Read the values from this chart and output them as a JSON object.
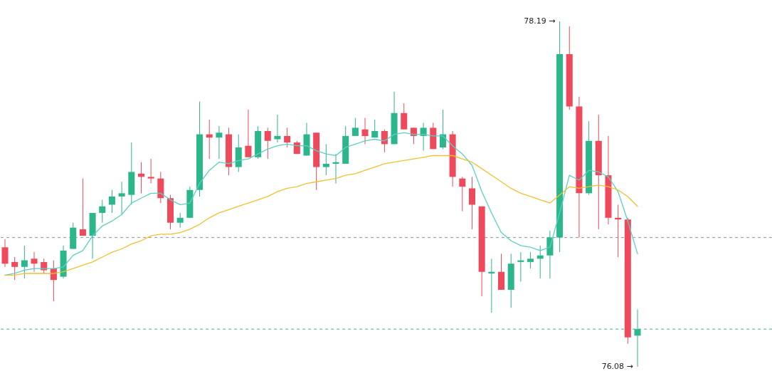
{
  "chart_data": {
    "type": "candlestick",
    "categories": [
      null,
      null,
      null,
      null,
      null,
      null,
      null,
      null,
      null,
      null,
      null,
      null,
      null,
      null,
      null,
      null,
      null,
      null,
      null,
      null,
      null,
      null,
      null,
      null,
      null,
      null,
      null,
      null,
      null,
      null,
      null,
      null,
      null,
      null,
      null,
      null,
      null,
      null,
      null,
      null,
      null,
      null,
      null,
      null,
      null,
      null,
      null,
      null,
      null,
      null,
      null,
      null,
      null,
      null,
      null,
      null,
      null,
      null,
      null,
      null,
      null,
      null,
      null,
      null,
      null,
      null
    ],
    "ohlc": [
      [
        76.81,
        76.86,
        76.69,
        76.71
      ],
      [
        76.72,
        76.75,
        76.61,
        76.69
      ],
      [
        76.69,
        76.82,
        76.62,
        76.73
      ],
      [
        76.74,
        76.78,
        76.66,
        76.71
      ],
      [
        76.72,
        76.74,
        76.65,
        76.67
      ],
      [
        76.68,
        76.73,
        76.48,
        76.61
      ],
      [
        76.63,
        76.82,
        76.62,
        76.79
      ],
      [
        76.8,
        76.96,
        76.8,
        76.93
      ],
      [
        76.92,
        77.23,
        76.88,
        76.88
      ],
      [
        76.88,
        77.02,
        76.74,
        77.02
      ],
      [
        77.02,
        77.1,
        76.96,
        77.06
      ],
      [
        77.07,
        77.16,
        77.02,
        77.12
      ],
      [
        77.12,
        77.21,
        77.01,
        77.14
      ],
      [
        77.13,
        77.45,
        77.07,
        77.27
      ],
      [
        77.26,
        77.33,
        77.14,
        77.24
      ],
      [
        77.24,
        77.35,
        77.2,
        77.23
      ],
      [
        77.23,
        77.27,
        77.08,
        77.11
      ],
      [
        77.11,
        77.13,
        76.92,
        76.96
      ],
      [
        76.96,
        77.02,
        76.93,
        76.99
      ],
      [
        76.99,
        77.18,
        76.99,
        77.16
      ],
      [
        77.16,
        77.7,
        77.12,
        77.5
      ],
      [
        77.5,
        77.59,
        77.35,
        77.48
      ],
      [
        77.48,
        77.55,
        77.35,
        77.51
      ],
      [
        77.5,
        77.54,
        77.25,
        77.3
      ],
      [
        77.3,
        77.5,
        77.27,
        77.42
      ],
      [
        77.43,
        77.65,
        77.36,
        77.36
      ],
      [
        77.36,
        77.55,
        77.35,
        77.52
      ],
      [
        77.52,
        77.54,
        77.35,
        77.46
      ],
      [
        77.47,
        77.62,
        77.45,
        77.49
      ],
      [
        77.49,
        77.54,
        77.42,
        77.45
      ],
      [
        77.45,
        77.46,
        77.38,
        77.38
      ],
      [
        77.37,
        77.57,
        77.37,
        77.5
      ],
      [
        77.51,
        77.51,
        77.16,
        77.3
      ],
      [
        77.3,
        77.44,
        77.25,
        77.32
      ],
      [
        77.32,
        77.38,
        77.2,
        77.33
      ],
      [
        77.32,
        77.55,
        77.32,
        77.49
      ],
      [
        77.49,
        77.6,
        77.49,
        77.54
      ],
      [
        77.53,
        77.6,
        77.44,
        77.49
      ],
      [
        77.48,
        77.59,
        77.48,
        77.52
      ],
      [
        77.52,
        77.53,
        77.39,
        77.44
      ],
      [
        77.44,
        77.76,
        77.44,
        77.63
      ],
      [
        77.63,
        77.69,
        77.53,
        77.53
      ],
      [
        77.54,
        77.54,
        77.44,
        77.49
      ],
      [
        77.49,
        77.57,
        77.4,
        77.54
      ],
      [
        77.54,
        77.57,
        77.41,
        77.41
      ],
      [
        77.42,
        77.65,
        77.41,
        77.5
      ],
      [
        77.5,
        77.52,
        77.18,
        77.24
      ],
      [
        77.23,
        77.24,
        77.03,
        77.18
      ],
      [
        77.17,
        77.24,
        76.92,
        77.07
      ],
      [
        77.06,
        77.06,
        76.51,
        76.66
      ],
      [
        76.65,
        76.74,
        76.41,
        76.66
      ],
      [
        76.66,
        76.77,
        76.55,
        76.55
      ],
      [
        76.55,
        76.77,
        76.44,
        76.71
      ],
      [
        76.72,
        76.78,
        76.6,
        76.73
      ],
      [
        76.72,
        76.78,
        76.68,
        76.74
      ],
      [
        76.74,
        76.82,
        76.62,
        76.76
      ],
      [
        76.76,
        76.91,
        76.62,
        76.87
      ],
      [
        76.87,
        78.19,
        76.78,
        77.99
      ],
      [
        77.99,
        78.16,
        77.65,
        77.67
      ],
      [
        77.67,
        77.73,
        76.87,
        77.14
      ],
      [
        77.14,
        77.58,
        77.13,
        77.46
      ],
      [
        77.46,
        77.62,
        76.92,
        77.25
      ],
      [
        77.25,
        77.49,
        76.95,
        76.99
      ],
      [
        76.99,
        77.07,
        76.75,
        76.98
      ],
      [
        76.98,
        76.99,
        76.22,
        76.26
      ],
      [
        76.27,
        76.43,
        76.08,
        76.31
      ]
    ],
    "colors": [
      "#ef4a5b",
      "#ef4a5b",
      "#2bb68c",
      "#ef4a5b",
      "#ef4a5b",
      "#ef4a5b",
      "#2bb68c",
      "#2bb68c",
      "#ef4a5b",
      "#2bb68c",
      "#2bb68c",
      "#2bb68c",
      "#2bb68c",
      "#2bb68c",
      "#ef4a5b",
      "#ef4a5b",
      "#ef4a5b",
      "#ef4a5b",
      "#2bb68c",
      "#2bb68c",
      "#2bb68c",
      "#ef4a5b",
      "#2bb68c",
      "#ef4a5b",
      "#2bb68c",
      "#ef4a5b",
      "#2bb68c",
      "#ef4a5b",
      "#2bb68c",
      "#ef4a5b",
      "#ef4a5b",
      "#2bb68c",
      "#ef4a5b",
      "#2bb68c",
      "#2bb68c",
      "#2bb68c",
      "#2bb68c",
      "#ef4a5b",
      "#2bb68c",
      "#ef4a5b",
      "#2bb68c",
      "#ef4a5b",
      "#ef4a5b",
      "#2bb68c",
      "#ef4a5b",
      "#2bb68c",
      "#ef4a5b",
      "#ef4a5b",
      "#ef4a5b",
      "#ef4a5b",
      "#2bb68c",
      "#ef4a5b",
      "#2bb68c",
      "#2bb68c",
      "#2bb68c",
      "#2bb68c",
      "#2bb68c",
      "#2bb68c",
      "#ef4a5b",
      "#ef4a5b",
      "#2bb68c",
      "#ef4a5b",
      "#ef4a5b",
      "#ef4a5b",
      "#ef4a5b",
      "#2bb68c"
    ],
    "series": [
      {
        "type": "line",
        "color": "#5ccfc3",
        "values": [
          76.64,
          76.65,
          76.67,
          76.68,
          76.68,
          76.68,
          76.69,
          76.76,
          76.79,
          76.88,
          76.94,
          76.97,
          77.01,
          77.08,
          77.11,
          77.14,
          77.14,
          77.1,
          77.07,
          77.08,
          77.2,
          77.28,
          77.33,
          77.32,
          77.34,
          77.35,
          77.38,
          77.41,
          77.43,
          77.44,
          77.43,
          77.43,
          77.4,
          77.38,
          77.37,
          77.42,
          77.44,
          77.46,
          77.47,
          77.46,
          77.5,
          77.51,
          77.5,
          77.5,
          77.49,
          77.49,
          77.43,
          77.38,
          77.31,
          77.15,
          77.02,
          76.9,
          76.85,
          76.82,
          76.81,
          76.79,
          76.81,
          77.02,
          77.25,
          77.22,
          77.28,
          77.27,
          77.24,
          77.15,
          76.97,
          76.77
        ]
      },
      {
        "type": "line",
        "color": "#f0c030",
        "values": [
          76.64,
          76.64,
          76.65,
          76.65,
          76.65,
          76.65,
          76.66,
          76.68,
          76.7,
          76.72,
          76.75,
          76.78,
          76.8,
          76.83,
          76.85,
          76.88,
          76.89,
          76.89,
          76.9,
          76.92,
          76.95,
          76.99,
          77.02,
          77.04,
          77.06,
          77.08,
          77.1,
          77.12,
          77.15,
          77.17,
          77.18,
          77.2,
          77.21,
          77.22,
          77.23,
          77.25,
          77.26,
          77.28,
          77.3,
          77.32,
          77.33,
          77.34,
          77.35,
          77.36,
          77.37,
          77.37,
          77.37,
          77.35,
          77.33,
          77.29,
          77.25,
          77.21,
          77.17,
          77.14,
          77.12,
          77.1,
          77.08,
          77.13,
          77.18,
          77.17,
          77.18,
          77.19,
          77.18,
          77.16,
          77.12,
          77.06
        ]
      }
    ],
    "ref_lines": [
      {
        "axis": "y",
        "value": 76.87,
        "color": "#8a9896",
        "line_style": "dashed"
      },
      {
        "axis": "y",
        "value": 76.31,
        "color": "#3aa88c",
        "line_style": "dashed"
      }
    ],
    "annotations": [
      "78.19 →",
      "76.08 →"
    ]
  }
}
